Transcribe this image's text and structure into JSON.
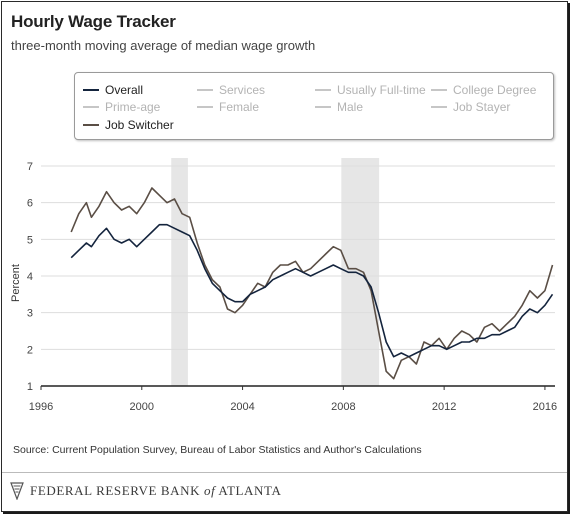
{
  "header": {
    "title": "Hourly Wage Tracker",
    "subtitle": "three-month moving average of median wage growth"
  },
  "legend": {
    "items": [
      {
        "label": "Overall",
        "active": true,
        "color": "#14243d"
      },
      {
        "label": "Services",
        "active": false
      },
      {
        "label": "Usually Full-time",
        "active": false
      },
      {
        "label": "College Degree",
        "active": false
      },
      {
        "label": "Prime-age",
        "active": false
      },
      {
        "label": "Female",
        "active": false
      },
      {
        "label": "Male",
        "active": false
      },
      {
        "label": "Job Stayer",
        "active": false
      },
      {
        "label": "Job Switcher",
        "active": true,
        "color": "#5a4e45"
      }
    ]
  },
  "source": "Source: Current Population Survey, Bureau of Labor Statistics and Author's Calculations",
  "footer": {
    "logo_text": "FEDERAL RESERVE BANK",
    "logo_of": "of",
    "logo_city": "ATLANTA"
  },
  "colors": {
    "overall": "#14243d",
    "job_switcher": "#5a4e45",
    "recession": "#e6e6e6",
    "grid": "#dddddd"
  },
  "chart_data": {
    "type": "line",
    "title": "Hourly Wage Tracker",
    "subtitle": "three-month moving average of median wage growth",
    "xlabel": "",
    "ylabel": "Percent",
    "xlim": [
      1996,
      2016.4
    ],
    "ylim": [
      1,
      7
    ],
    "x_ticks": [
      1996,
      2000,
      2004,
      2008,
      2012,
      2016
    ],
    "y_ticks": [
      1,
      2,
      3,
      4,
      5,
      6,
      7
    ],
    "grid": true,
    "recessions": [
      [
        2001.17,
        2001.83
      ],
      [
        2007.92,
        2009.42
      ]
    ],
    "series": [
      {
        "name": "Overall",
        "x": [
          1997.2,
          1997.5,
          1997.8,
          1998.0,
          1998.3,
          1998.6,
          1998.9,
          1999.2,
          1999.5,
          1999.8,
          2000.1,
          2000.4,
          2000.7,
          2001.0,
          2001.3,
          2001.6,
          2001.9,
          2002.2,
          2002.5,
          2002.8,
          2003.1,
          2003.4,
          2003.7,
          2004.0,
          2004.3,
          2004.6,
          2004.9,
          2005.2,
          2005.5,
          2005.8,
          2006.1,
          2006.4,
          2006.7,
          2007.0,
          2007.3,
          2007.6,
          2007.9,
          2008.2,
          2008.5,
          2008.8,
          2009.1,
          2009.4,
          2009.7,
          2010.0,
          2010.3,
          2010.6,
          2010.9,
          2011.2,
          2011.5,
          2011.8,
          2012.1,
          2012.4,
          2012.7,
          2013.0,
          2013.3,
          2013.6,
          2013.9,
          2014.2,
          2014.5,
          2014.8,
          2015.1,
          2015.4,
          2015.7,
          2016.0,
          2016.3
        ],
        "values": [
          4.5,
          4.7,
          4.9,
          4.8,
          5.1,
          5.3,
          5.0,
          4.9,
          5.0,
          4.8,
          5.0,
          5.2,
          5.4,
          5.4,
          5.3,
          5.2,
          5.1,
          4.7,
          4.2,
          3.8,
          3.6,
          3.4,
          3.3,
          3.3,
          3.5,
          3.6,
          3.7,
          3.9,
          4.0,
          4.1,
          4.2,
          4.1,
          4.0,
          4.1,
          4.2,
          4.3,
          4.2,
          4.1,
          4.1,
          4.0,
          3.7,
          3.0,
          2.2,
          1.8,
          1.9,
          1.8,
          1.9,
          2.0,
          2.1,
          2.1,
          2.0,
          2.1,
          2.2,
          2.2,
          2.3,
          2.3,
          2.4,
          2.4,
          2.5,
          2.6,
          2.9,
          3.1,
          3.0,
          3.2,
          3.5
        ]
      },
      {
        "name": "Job Switcher",
        "x": [
          1997.2,
          1997.5,
          1997.8,
          1998.0,
          1998.3,
          1998.6,
          1998.9,
          1999.2,
          1999.5,
          1999.8,
          2000.1,
          2000.4,
          2000.7,
          2001.0,
          2001.3,
          2001.6,
          2001.9,
          2002.2,
          2002.5,
          2002.8,
          2003.1,
          2003.4,
          2003.7,
          2004.0,
          2004.3,
          2004.6,
          2004.9,
          2005.2,
          2005.5,
          2005.8,
          2006.1,
          2006.4,
          2006.7,
          2007.0,
          2007.3,
          2007.6,
          2007.9,
          2008.2,
          2008.5,
          2008.8,
          2009.1,
          2009.4,
          2009.7,
          2010.0,
          2010.3,
          2010.6,
          2010.9,
          2011.2,
          2011.5,
          2011.8,
          2012.1,
          2012.4,
          2012.7,
          2013.0,
          2013.3,
          2013.6,
          2013.9,
          2014.2,
          2014.5,
          2014.8,
          2015.1,
          2015.4,
          2015.7,
          2016.0,
          2016.3
        ],
        "values": [
          5.2,
          5.7,
          6.0,
          5.6,
          5.9,
          6.3,
          6.0,
          5.8,
          5.9,
          5.7,
          6.0,
          6.4,
          6.2,
          6.0,
          6.1,
          5.7,
          5.6,
          4.9,
          4.3,
          3.9,
          3.7,
          3.1,
          3.0,
          3.2,
          3.5,
          3.8,
          3.7,
          4.1,
          4.3,
          4.3,
          4.4,
          4.1,
          4.2,
          4.4,
          4.6,
          4.8,
          4.7,
          4.2,
          4.2,
          4.1,
          3.6,
          2.5,
          1.4,
          1.2,
          1.7,
          1.8,
          1.6,
          2.2,
          2.1,
          2.3,
          2.0,
          2.3,
          2.5,
          2.4,
          2.2,
          2.6,
          2.7,
          2.5,
          2.7,
          2.9,
          3.2,
          3.6,
          3.4,
          3.6,
          4.3
        ]
      }
    ]
  }
}
